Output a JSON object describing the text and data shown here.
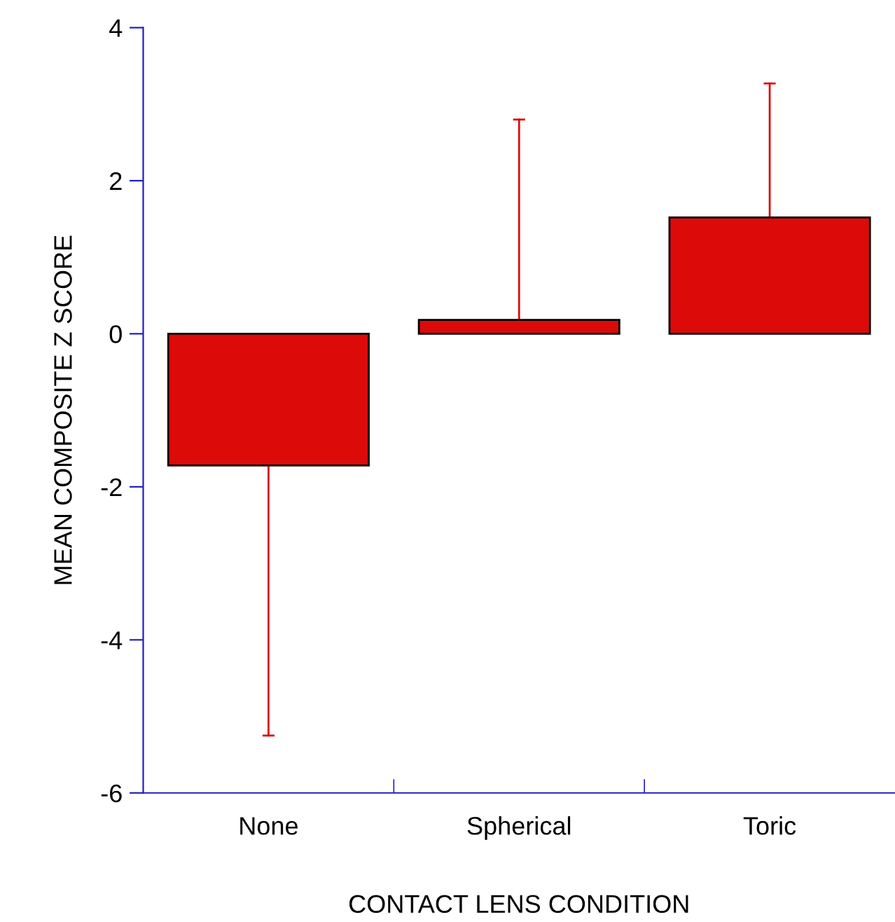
{
  "chart_data": {
    "type": "bar",
    "xlabel": "CONTACT LENS CONDITION",
    "ylabel": "MEAN COMPOSITE Z SCORE",
    "categories": [
      "None",
      "Spherical",
      "Toric"
    ],
    "values": [
      -1.72,
      0.18,
      1.52
    ],
    "errors": [
      [
        -5.25,
        -1.72
      ],
      [
        0.18,
        2.8
      ],
      [
        1.52,
        3.27
      ]
    ],
    "color": "#dd0a0a",
    "ylim": [
      -6,
      4
    ],
    "yticks": [
      -6,
      -4,
      -2,
      0,
      2,
      4
    ],
    "grid": false,
    "legend": false
  }
}
